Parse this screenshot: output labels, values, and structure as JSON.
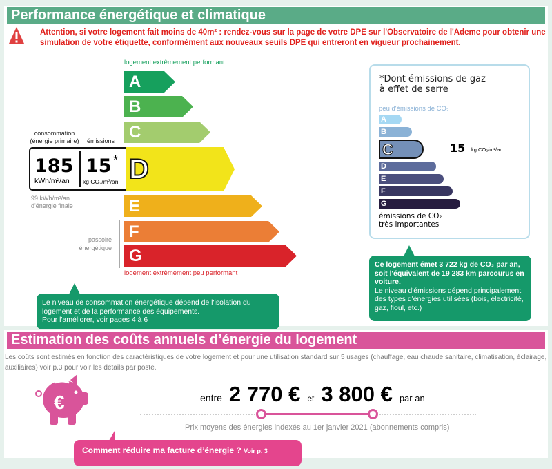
{
  "section1": {
    "title": "Performance énergétique et climatique",
    "warning": "Attention, si votre logement fait moins de 40m² : rendez-vous sur la page de votre DPE sur l'Observatoire de l'Ademe pour obtenir une simulation de votre étiquette, conformément aux nouveaux seuils DPE qui entreront en vigueur prochainement.",
    "warning_icon": "warning-triangle-icon",
    "header_color": "#5aab87"
  },
  "energy": {
    "top_label": "logement extrêmement performant",
    "bottom_label": "logement extrêmement peu performant",
    "current": "D",
    "classes": [
      {
        "letter": "A",
        "color": "#16a05d"
      },
      {
        "letter": "B",
        "color": "#4cb24f"
      },
      {
        "letter": "C",
        "color": "#a3cc6e"
      },
      {
        "letter": "D",
        "color": "#f2e41a"
      },
      {
        "letter": "E",
        "color": "#efb01b"
      },
      {
        "letter": "F",
        "color": "#eb7e36"
      },
      {
        "letter": "G",
        "color": "#d9232a"
      }
    ],
    "consumption_label": "consommation\n(énergie primaire)",
    "emissions_label": "émissions",
    "consumption_value": "185",
    "consumption_unit": "kWh/m²/an",
    "emissions_value": "15",
    "emissions_star": "*",
    "emissions_unit": "kg CO₂/m²/an",
    "final_energy": "99 kWh/m²/an\nd'énergie finale",
    "passoire": "passoire\nénergétique"
  },
  "ghg": {
    "title": "*Dont émissions de gaz\nà effet de serre",
    "top_label": "peu d'émissions de CO₂",
    "bottom_label": "émissions de CO₂\ntrès importantes",
    "current": "C",
    "value": "15",
    "unit": "kg CO₂/m²/an",
    "classes": [
      {
        "letter": "A",
        "color": "#a5d8f3"
      },
      {
        "letter": "B",
        "color": "#8bb2d6"
      },
      {
        "letter": "C",
        "color": "#7490b8"
      },
      {
        "letter": "D",
        "color": "#5d6c9c"
      },
      {
        "letter": "E",
        "color": "#4b4f7e"
      },
      {
        "letter": "F",
        "color": "#383661"
      },
      {
        "letter": "G",
        "color": "#261c3f"
      }
    ]
  },
  "callout_energy": "Le niveau de consommation énergétique dépend de l'isolation du logement et de la performance des équipements.\nPour l'améliorer, voir pages 4 à 6",
  "callout_ghg_bold": "Ce logement émet 3 722 kg de CO₂ par an, soit l'équivalent de 19 283 km parcourus en voiture.",
  "callout_ghg": "Le niveau d'émissions dépend principalement des types d'énergies utilisées (bois, électricité, gaz, fioul, etc.)",
  "section2": {
    "title": "Estimation des coûts annuels d’énergie du logement",
    "header_color": "#d9549a",
    "description": "Les coûts sont estimés en fonction des caractéristiques de votre logement et pour une utilisation standard sur 5 usages (chauffage, eau chaude sanitaire, climatisation, éclairage, auxiliaires) voir p.3 pour voir les détails par poste.",
    "piggy_icon": "piggy-bank-euro-icon",
    "between": "entre",
    "min": "2 770 €",
    "and": "et",
    "max": "3 800 €",
    "per_year": "par an",
    "prices_note": "Prix moyens des énergies indexés au  1er janvier 2021 (abonnements compris)",
    "cta": "Comment réduire ma facture d’énergie ?",
    "cta_link": "Voir p. 3"
  }
}
